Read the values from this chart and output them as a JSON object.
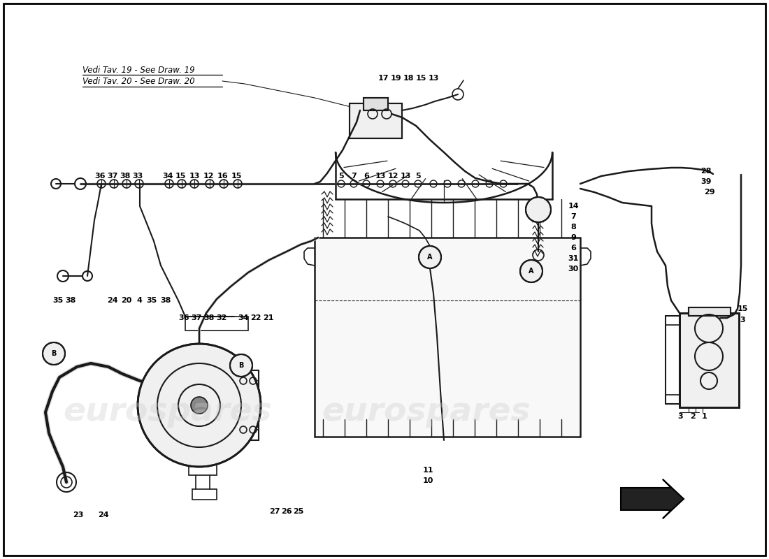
{
  "background_color": "#ffffff",
  "watermark_text": "eurospares",
  "watermark_color": "#cccccc",
  "watermark_alpha": 0.35,
  "diagram_color": "#1a1a1a",
  "ref_text_1": "Vedi Tav. 19 - See Draw. 19",
  "ref_text_2": "Vedi Tav. 20 - See Draw. 20",
  "figsize": [
    11.0,
    8.0
  ],
  "dpi": 100,
  "part_positions": [
    [
      "1",
      1008,
      596
    ],
    [
      "2",
      991,
      596
    ],
    [
      "3",
      973,
      596
    ],
    [
      "3",
      1062,
      458
    ],
    [
      "15",
      1062,
      442
    ],
    [
      "17",
      548,
      112
    ],
    [
      "19",
      566,
      112
    ],
    [
      "18",
      584,
      112
    ],
    [
      "15",
      602,
      112
    ],
    [
      "13",
      620,
      112
    ],
    [
      "36",
      143,
      252
    ],
    [
      "37",
      161,
      252
    ],
    [
      "38",
      179,
      252
    ],
    [
      "33",
      197,
      252
    ],
    [
      "34",
      240,
      252
    ],
    [
      "15",
      258,
      252
    ],
    [
      "13",
      278,
      252
    ],
    [
      "12",
      298,
      252
    ],
    [
      "16",
      318,
      252
    ],
    [
      "15",
      338,
      252
    ],
    [
      "5",
      488,
      252
    ],
    [
      "7",
      506,
      252
    ],
    [
      "6",
      524,
      252
    ],
    [
      "13",
      544,
      252
    ],
    [
      "12",
      562,
      252
    ],
    [
      "13",
      580,
      252
    ],
    [
      "5",
      598,
      252
    ],
    [
      "28",
      1010,
      245
    ],
    [
      "39",
      1010,
      260
    ],
    [
      "29",
      1015,
      275
    ],
    [
      "14",
      820,
      295
    ],
    [
      "7",
      820,
      310
    ],
    [
      "8",
      820,
      325
    ],
    [
      "9",
      820,
      340
    ],
    [
      "6",
      820,
      355
    ],
    [
      "31",
      820,
      370
    ],
    [
      "30",
      820,
      385
    ],
    [
      "11",
      612,
      673
    ],
    [
      "10",
      612,
      688
    ],
    [
      "36",
      263,
      455
    ],
    [
      "37",
      281,
      455
    ],
    [
      "38",
      299,
      455
    ],
    [
      "32",
      317,
      455
    ],
    [
      "34",
      348,
      455
    ],
    [
      "22",
      366,
      455
    ],
    [
      "21",
      384,
      455
    ],
    [
      "35",
      83,
      430
    ],
    [
      "38",
      101,
      430
    ],
    [
      "24",
      161,
      430
    ],
    [
      "20",
      181,
      430
    ],
    [
      "4",
      199,
      430
    ],
    [
      "35",
      217,
      430
    ],
    [
      "38",
      237,
      430
    ],
    [
      "23",
      112,
      737
    ],
    [
      "24",
      148,
      737
    ],
    [
      "27",
      393,
      732
    ],
    [
      "26",
      410,
      732
    ],
    [
      "25",
      427,
      732
    ]
  ]
}
